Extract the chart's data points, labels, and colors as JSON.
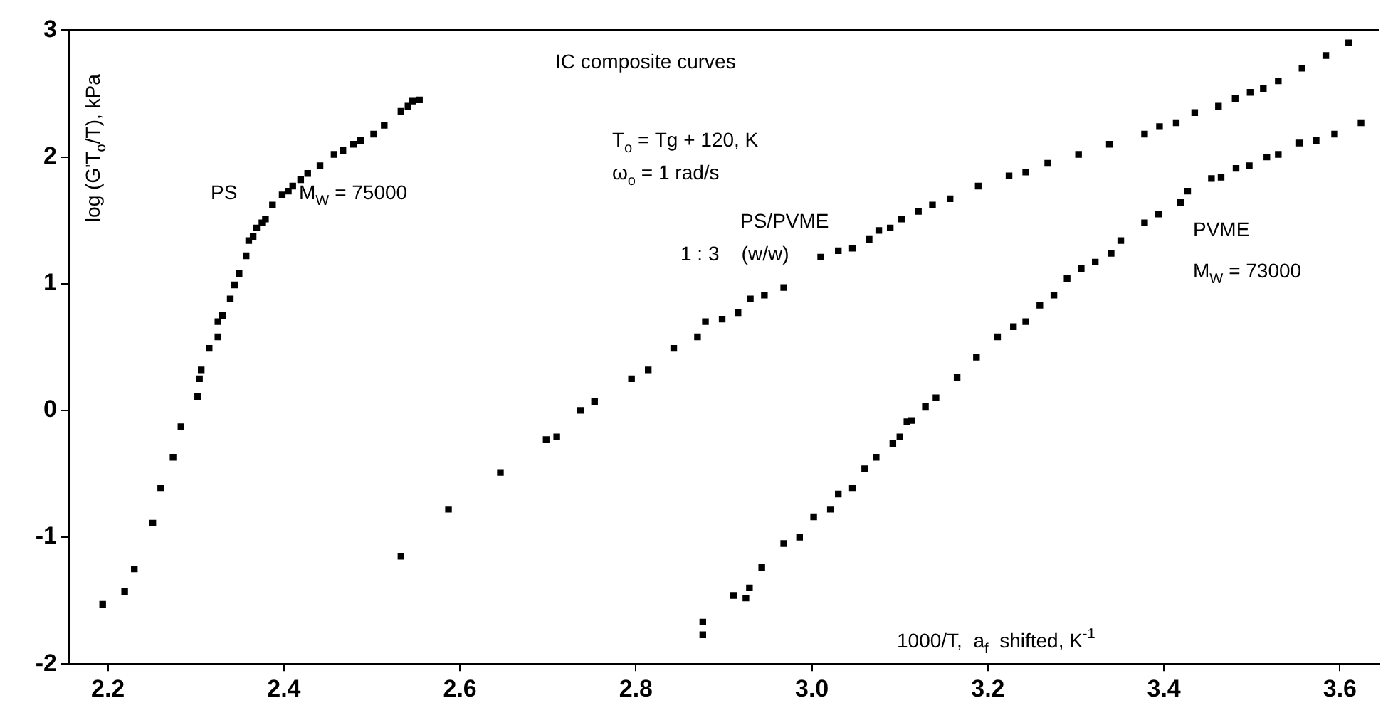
{
  "chart_data": {
    "type": "scatter",
    "xlabel": "1000/T,  a$_{f}$  shifted, K$^{-1}$",
    "ylabel": "log (G'T$_{o}$/T), kPa",
    "annotations": [
      "IC composite curves",
      "M$_{W}$ = 75000",
      "T$_{o}$ = Tg + 120, K",
      "ω$_{o}$ = 1 rad/s",
      "1 : 3    (w/w)",
      "M$_{W}$ = 73000"
    ],
    "xlim": [
      2.155,
      3.645
    ],
    "ylim": [
      -2,
      3
    ],
    "xticks": [
      2.2,
      2.4,
      2.6,
      2.8,
      {
        "value": 3,
        "label": "3.0"
      },
      3.2,
      3.4,
      3.6
    ],
    "yticks": [
      -2,
      -1,
      0,
      1,
      2,
      3
    ],
    "grid": false,
    "legend": false,
    "marker": "square",
    "series": [
      {
        "name": "PS",
        "color": "#000000",
        "x": [
          2.194,
          2.219,
          2.23,
          2.251,
          2.26,
          2.274,
          2.283,
          2.302,
          2.304,
          2.306,
          2.315,
          2.325,
          2.325,
          2.33,
          2.339,
          2.344,
          2.349,
          2.357,
          2.36,
          2.365,
          2.369,
          2.375,
          2.379,
          2.387,
          2.398,
          2.405,
          2.41,
          2.419,
          2.427,
          2.441,
          2.457,
          2.467,
          2.479,
          2.487,
          2.502,
          2.514,
          2.533,
          2.541,
          2.546,
          2.554
        ],
        "values": [
          -1.53,
          -1.43,
          -1.25,
          -0.89,
          -0.61,
          -0.37,
          -0.13,
          0.11,
          0.25,
          0.32,
          0.49,
          0.58,
          0.7,
          0.75,
          0.88,
          0.99,
          1.08,
          1.22,
          1.34,
          1.37,
          1.44,
          1.48,
          1.51,
          1.62,
          1.7,
          1.73,
          1.77,
          1.82,
          1.87,
          1.93,
          2.02,
          2.05,
          2.1,
          2.13,
          2.18,
          2.25,
          2.36,
          2.4,
          2.44,
          2.45
        ]
      },
      {
        "name": "PS/PVME",
        "color": "#000000",
        "x": [
          2.533,
          2.587,
          2.646,
          2.698,
          2.71,
          2.737,
          2.753,
          2.795,
          2.814,
          2.843,
          2.87,
          2.879,
          2.898,
          2.916,
          2.93,
          2.946,
          2.968,
          3.01,
          3.03,
          3.046,
          3.065,
          3.076,
          3.089,
          3.102,
          3.121,
          3.137,
          3.157,
          3.189,
          3.224,
          3.243,
          3.268,
          3.303,
          3.338,
          3.378,
          3.395,
          3.414,
          3.435,
          3.462,
          3.481,
          3.498,
          3.513,
          3.53,
          3.557,
          3.584,
          3.61
        ],
        "values": [
          -1.15,
          -0.78,
          -0.49,
          -0.23,
          -0.21,
          0,
          0.07,
          0.25,
          0.32,
          0.49,
          0.58,
          0.7,
          0.72,
          0.77,
          0.88,
          0.91,
          0.97,
          1.21,
          1.26,
          1.28,
          1.35,
          1.42,
          1.44,
          1.51,
          1.57,
          1.62,
          1.67,
          1.77,
          1.85,
          1.88,
          1.95,
          2.02,
          2.1,
          2.18,
          2.24,
          2.27,
          2.35,
          2.4,
          2.46,
          2.51,
          2.54,
          2.6,
          2.7,
          2.8,
          2.9
        ]
      },
      {
        "name": "PVME",
        "color": "#000000",
        "x": [
          2.876,
          2.876,
          2.911,
          2.925,
          2.929,
          2.943,
          2.968,
          2.986,
          3.002,
          3.021,
          3.03,
          3.046,
          3.06,
          3.073,
          3.092,
          3.1,
          3.108,
          3.113,
          3.129,
          3.141,
          3.165,
          3.187,
          3.211,
          3.229,
          3.243,
          3.259,
          3.275,
          3.29,
          3.306,
          3.322,
          3.34,
          3.351,
          3.378,
          3.394,
          3.419,
          3.427,
          3.454,
          3.465,
          3.482,
          3.497,
          3.517,
          3.53,
          3.554,
          3.573,
          3.594,
          3.624
        ],
        "values": [
          -1.77,
          -1.67,
          -1.46,
          -1.48,
          -1.4,
          -1.24,
          -1.05,
          -1,
          -0.84,
          -0.78,
          -0.66,
          -0.61,
          -0.46,
          -0.37,
          -0.26,
          -0.21,
          -0.09,
          -0.08,
          0.03,
          0.1,
          0.26,
          0.42,
          0.58,
          0.66,
          0.7,
          0.83,
          0.91,
          1.04,
          1.12,
          1.17,
          1.24,
          1.34,
          1.48,
          1.55,
          1.64,
          1.73,
          1.83,
          1.84,
          1.91,
          1.93,
          2,
          2.02,
          2.11,
          2.13,
          2.18,
          2.27
        ]
      }
    ]
  }
}
